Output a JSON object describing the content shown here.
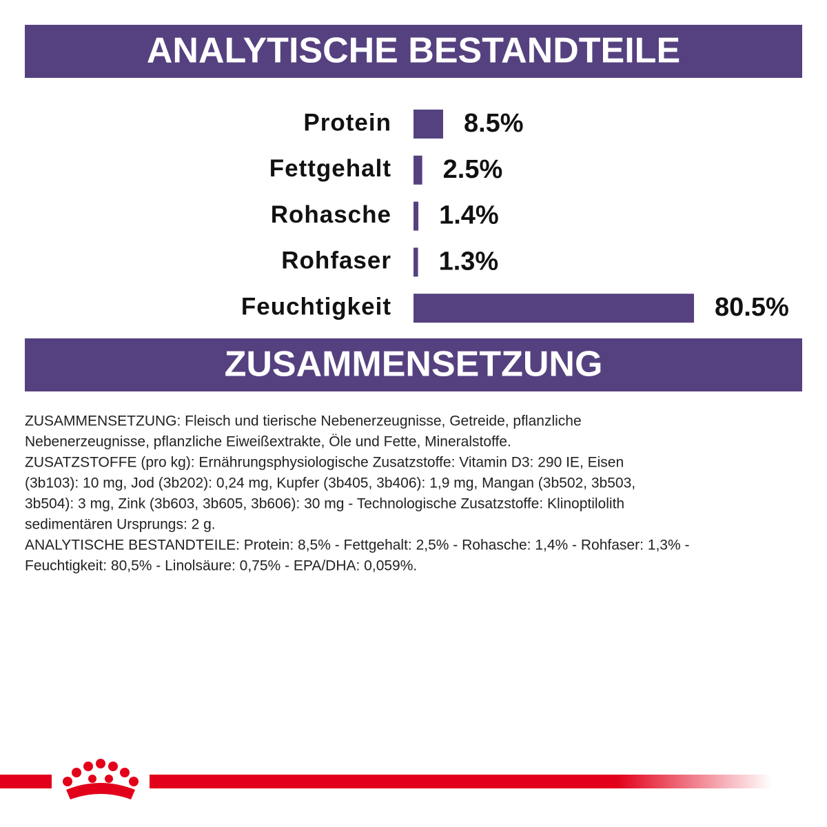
{
  "chart_data": {
    "type": "bar",
    "orientation": "horizontal",
    "title": "ANALYTISCHE BESTANDTEILE",
    "categories": [
      "Protein",
      "Fettgehalt",
      "Rohasche",
      "Rohfaser",
      "Feuchtigkeit"
    ],
    "values": [
      8.5,
      2.5,
      1.4,
      1.3,
      80.5
    ],
    "value_labels": [
      "8.5%",
      "2.5%",
      "1.4%",
      "1.3%",
      "80.5%"
    ],
    "color": "#55417f"
  },
  "composition": {
    "title": "ZUSAMMENSETZUNG",
    "lines": [
      "ZUSAMMENSETZUNG: Fleisch und tierische Nebenerzeugnisse, Getreide, pflanzliche",
      "Nebenerzeugnisse, pflanzliche Eiweißextrakte, Öle und Fette, Mineralstoffe.",
      "ZUSATZSTOFFE (pro kg): Ernährungsphysiologische Zusatzstoffe: Vitamin D3: 290 IE, Eisen",
      "(3b103): 10 mg, Jod (3b202): 0,24 mg, Kupfer (3b405, 3b406): 1,9 mg, Mangan (3b502, 3b503,",
      "3b504): 3 mg, Zink (3b603, 3b605, 3b606): 30 mg - Technologische Zusatzstoffe: Klinoptilolith",
      "sedimentären Ursprungs: 2 g.",
      "ANALYTISCHE BESTANDTEILE: Protein: 8,5% - Fettgehalt: 2,5% - Rohasche: 1,4% - Rohfaser: 1,3% -",
      "Feuchtigkeit: 80,5% - Linolsäure: 0,75% - EPA/DHA: 0,059%."
    ]
  }
}
